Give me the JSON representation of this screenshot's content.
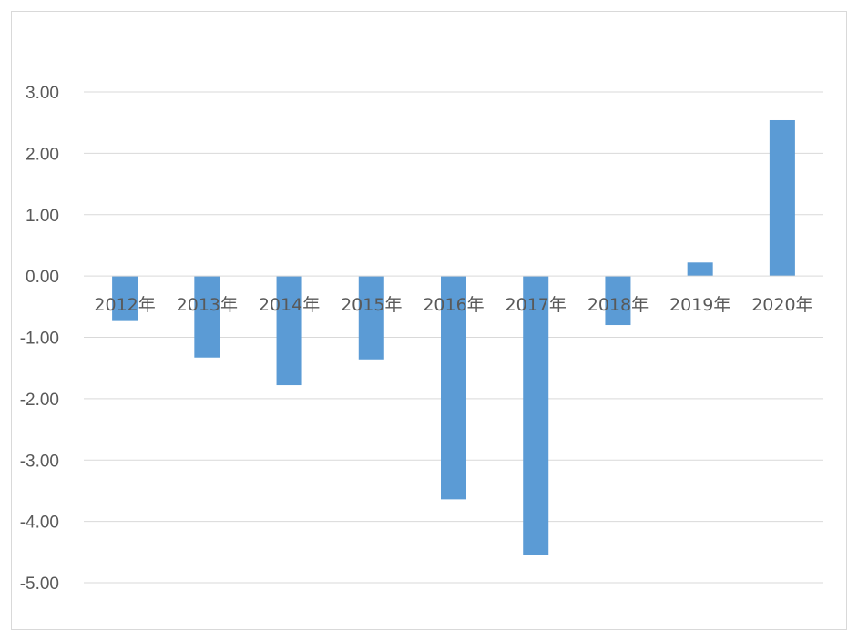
{
  "chart_data": {
    "type": "bar",
    "title": "",
    "xlabel": "",
    "ylabel": "",
    "categories": [
      "2012年",
      "2013年",
      "2014年",
      "2015年",
      "2016年",
      "2017年",
      "2018年",
      "2019年",
      "2020年"
    ],
    "values": [
      -0.72,
      -1.33,
      -1.78,
      -1.36,
      -3.64,
      -4.55,
      -0.8,
      0.22,
      2.54
    ],
    "ylim": [
      -5,
      3
    ],
    "yticks": [
      "3.00",
      "2.00",
      "1.00",
      "0.00",
      "-1.00",
      "-2.00",
      "-3.00",
      "-4.00",
      "-5.00"
    ],
    "grid": true,
    "legend": "none",
    "bar_color": "#5b9bd5",
    "grid_color": "#d9d9d9",
    "text_color": "#595959"
  }
}
